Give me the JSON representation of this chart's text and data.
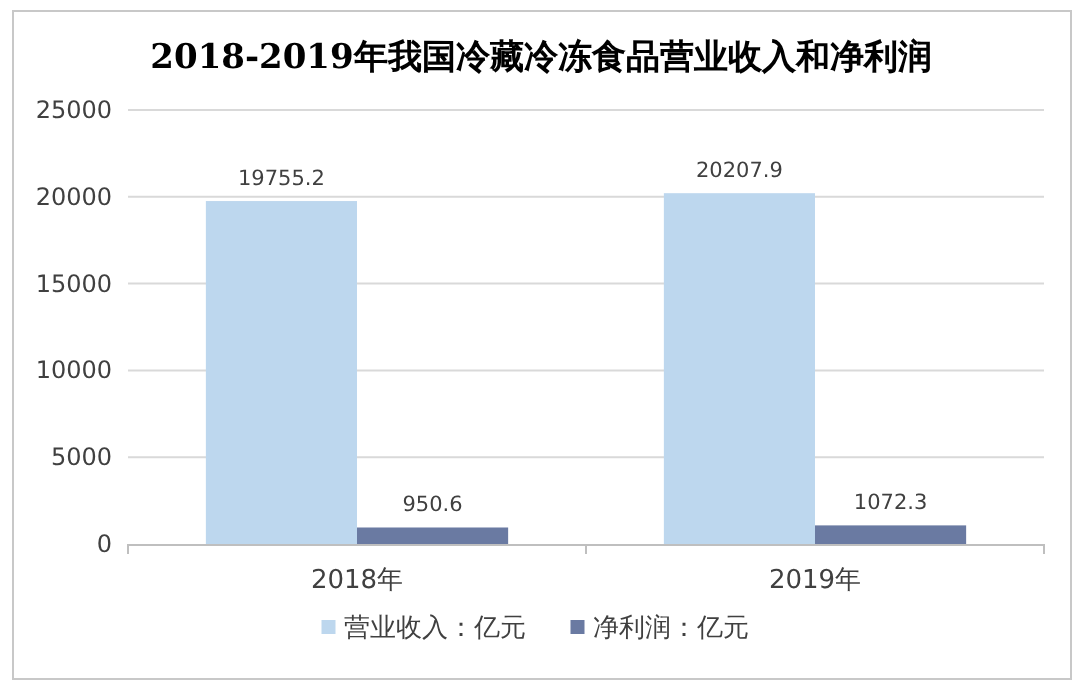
{
  "chart_data": {
    "type": "bar",
    "title": "2018-2019年我国冷藏冷冻食品营业收入和净利润",
    "categories": [
      "2018年",
      "2019年"
    ],
    "series": [
      {
        "name": "营业收入：亿元",
        "color": "#bdd7ee",
        "values": [
          19755.2,
          20207.9
        ]
      },
      {
        "name": "净利润：亿元",
        "color": "#6a7aa2",
        "values": [
          950.6,
          1072.3
        ]
      }
    ],
    "ylim": [
      0,
      25000
    ],
    "yticks": [
      0,
      5000,
      10000,
      15000,
      20000,
      25000
    ],
    "grid": "y",
    "legend": "bottom",
    "data_labels": true
  }
}
